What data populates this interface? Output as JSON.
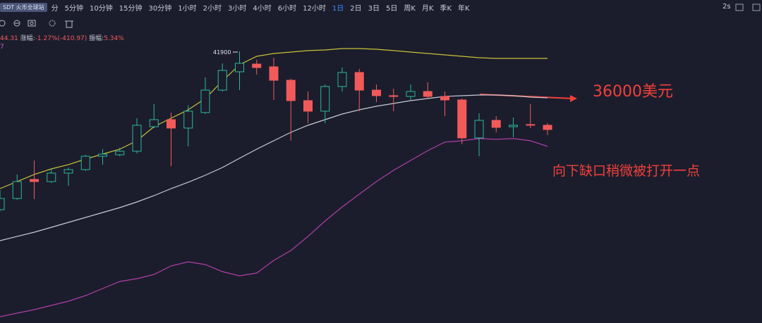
{
  "toolbar": {
    "symbol": "SDT 火币全球站",
    "intervals": [
      "分",
      "5分钟",
      "10分钟",
      "15分钟",
      "30分钟",
      "1小时",
      "2小时",
      "3小时",
      "4小时",
      "6小时",
      "12小时",
      "1日",
      "2日",
      "3日",
      "5日",
      "周K",
      "月K",
      "季K",
      "年K"
    ],
    "active": 11,
    "refresh": "2s"
  },
  "info": {
    "open_partial": "44.31",
    "change_label": "涨幅:",
    "change": "-1.27%(-410.97)",
    "amplitude_label": "振幅:",
    "amplitude": "5.34%",
    "indicator_partial": "7"
  },
  "chart_data": {
    "type": "candlestick",
    "open": [
      21170,
      22640,
      25130,
      24850,
      25960,
      26420,
      28170,
      28360,
      28820,
      32040,
      32960,
      31860,
      33890,
      36830,
      39230,
      40240,
      39880,
      38120,
      35450,
      34070,
      37300,
      39140,
      36830,
      36100,
      36000,
      36650,
      36000,
      35540,
      30570,
      32870,
      32040,
      32320,
      32230
    ],
    "high": [
      23750,
      25780,
      27620,
      26510,
      26700,
      28360,
      29090,
      29280,
      33150,
      34990,
      33890,
      34810,
      38490,
      40340,
      41900,
      40800,
      41070,
      38310,
      36650,
      37570,
      39780,
      39600,
      37570,
      37020,
      37570,
      37850,
      36650,
      35730,
      33790,
      33420,
      33240,
      34990,
      32500
    ],
    "low": [
      20980,
      22460,
      22550,
      24670,
      24300,
      26240,
      27070,
      28170,
      28540,
      31860,
      26880,
      29460,
      33700,
      36650,
      36830,
      38860,
      35540,
      30200,
      32500,
      32500,
      36650,
      34070,
      35270,
      34070,
      35540,
      35730,
      33420,
      29740,
      28170,
      31300,
      30660,
      31860,
      30940
    ],
    "close": [
      22640,
      24850,
      24850,
      25960,
      26420,
      28170,
      28450,
      28820,
      32230,
      32960,
      31860,
      34070,
      36830,
      39410,
      40340,
      39780,
      38120,
      35450,
      34070,
      37300,
      39140,
      36830,
      36100,
      36000,
      36650,
      36000,
      35540,
      30570,
      32870,
      31950,
      32230,
      32230,
      31670
    ],
    "up_color": "#2bb89a",
    "down_color": "#f25a5a",
    "series": [
      {
        "color": "#c9c13a",
        "values": [
          23930,
          24850,
          25780,
          26510,
          27070,
          27800,
          28450,
          29090,
          30200,
          32040,
          33150,
          34250,
          35730,
          38030,
          40150,
          41260,
          41630,
          41810,
          42000,
          42090,
          42270,
          42270,
          42180,
          42000,
          41810,
          41630,
          41440,
          41260,
          41070,
          40980,
          40980,
          40980,
          40980
        ]
      },
      {
        "color": "#c8cad6",
        "values": [
          17110,
          17670,
          18220,
          18860,
          19510,
          20150,
          20800,
          21440,
          22180,
          23010,
          23930,
          24760,
          25680,
          26700,
          27900,
          29090,
          30200,
          31300,
          32230,
          32960,
          33700,
          34250,
          34710,
          35080,
          35450,
          35730,
          36000,
          36100,
          36190,
          36190,
          36100,
          35910,
          35820
        ]
      },
      {
        "color": "#b03ea8",
        "values": [
          7160,
          7620,
          8080,
          8630,
          9190,
          9920,
          10850,
          11770,
          12140,
          12690,
          13800,
          14350,
          13980,
          13060,
          12500,
          12870,
          14530,
          15820,
          17670,
          19690,
          21540,
          23200,
          24850,
          26330,
          27620,
          28910,
          30010,
          30200,
          30480,
          30380,
          30480,
          30200,
          29460
        ]
      }
    ],
    "ylim": [
      6330,
      48630
    ],
    "max_label": 41900,
    "annotations": [
      "36000美元",
      "向下缺口稍微被打开一点"
    ]
  }
}
